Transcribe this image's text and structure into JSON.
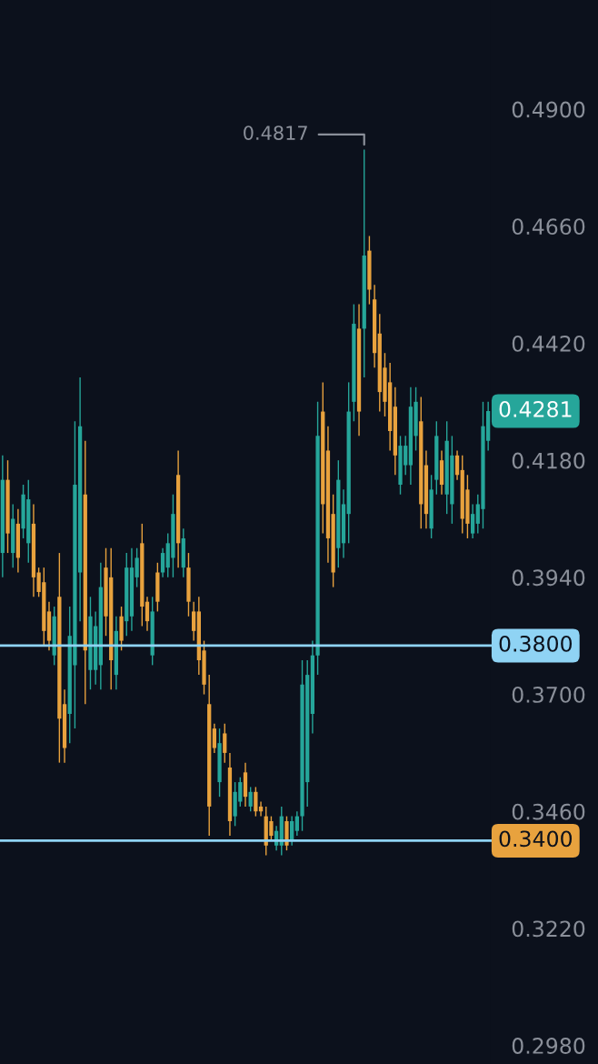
{
  "chart_data": {
    "type": "candlestick",
    "categories": [
      null,
      null,
      null,
      null,
      null,
      null,
      null,
      null,
      null,
      null,
      null,
      null,
      null,
      null,
      null,
      null,
      null,
      null,
      null,
      null,
      null,
      null,
      null,
      null,
      null,
      null,
      null,
      null,
      null,
      null,
      null,
      null,
      null,
      null,
      null,
      null,
      null,
      null,
      null,
      null,
      null,
      null,
      null,
      null,
      null,
      null,
      null,
      null,
      null,
      null,
      null,
      null,
      null,
      null,
      null,
      null,
      null,
      null,
      null,
      null,
      null,
      null,
      null,
      null,
      null,
      null,
      null,
      null,
      null,
      null,
      null,
      null,
      null,
      null,
      null,
      null,
      null,
      null,
      null,
      null,
      null,
      null,
      null,
      null,
      null,
      null,
      null,
      null,
      null,
      null,
      null,
      null,
      null,
      null,
      null
    ],
    "ohlc": [
      [
        0.399,
        0.419,
        0.394,
        0.414
      ],
      [
        0.414,
        0.418,
        0.399,
        0.403
      ],
      [
        0.399,
        0.409,
        0.396,
        0.406
      ],
      [
        0.405,
        0.408,
        0.395,
        0.398
      ],
      [
        0.404,
        0.413,
        0.402,
        0.411
      ],
      [
        0.401,
        0.414,
        0.397,
        0.41
      ],
      [
        0.405,
        0.409,
        0.39,
        0.394
      ],
      [
        0.395,
        0.396,
        0.39,
        0.391
      ],
      [
        0.393,
        0.396,
        0.38,
        0.383
      ],
      [
        0.387,
        0.389,
        0.379,
        0.381
      ],
      [
        0.378,
        0.388,
        0.376,
        0.386
      ],
      [
        0.39,
        0.399,
        0.356,
        0.365
      ],
      [
        0.368,
        0.371,
        0.356,
        0.359
      ],
      [
        0.366,
        0.388,
        0.36,
        0.382
      ],
      [
        0.376,
        0.426,
        0.363,
        0.413
      ],
      [
        0.395,
        0.435,
        0.385,
        0.425
      ],
      [
        0.411,
        0.422,
        0.368,
        0.379
      ],
      [
        0.375,
        0.39,
        0.371,
        0.386
      ],
      [
        0.375,
        0.387,
        0.372,
        0.384
      ],
      [
        0.376,
        0.397,
        0.371,
        0.392
      ],
      [
        0.396,
        0.4,
        0.382,
        0.386
      ],
      [
        0.394,
        0.4,
        0.371,
        0.377
      ],
      [
        0.374,
        0.386,
        0.371,
        0.383
      ],
      [
        0.386,
        0.388,
        0.379,
        0.381
      ],
      [
        0.385,
        0.399,
        0.382,
        0.396
      ],
      [
        0.386,
        0.4,
        0.383,
        0.396
      ],
      [
        0.394,
        0.4,
        0.392,
        0.398
      ],
      [
        0.401,
        0.405,
        0.384,
        0.388
      ],
      [
        0.389,
        0.39,
        0.383,
        0.385
      ],
      [
        0.378,
        0.39,
        0.376,
        0.387
      ],
      [
        0.395,
        0.397,
        0.387,
        0.389
      ],
      [
        0.395,
        0.4,
        0.394,
        0.399
      ],
      [
        0.396,
        0.403,
        0.394,
        0.401
      ],
      [
        0.398,
        0.411,
        0.394,
        0.407
      ],
      [
        0.415,
        0.42,
        0.396,
        0.401
      ],
      [
        0.396,
        0.404,
        0.394,
        0.402
      ],
      [
        0.396,
        0.399,
        0.386,
        0.389
      ],
      [
        0.387,
        0.389,
        0.381,
        0.383
      ],
      [
        0.387,
        0.39,
        0.374,
        0.377
      ],
      [
        0.379,
        0.381,
        0.37,
        0.372
      ],
      [
        0.368,
        0.374,
        0.341,
        0.347
      ],
      [
        0.363,
        0.364,
        0.358,
        0.359
      ],
      [
        0.352,
        0.363,
        0.349,
        0.36
      ],
      [
        0.362,
        0.364,
        0.356,
        0.358
      ],
      [
        0.355,
        0.358,
        0.341,
        0.344
      ],
      [
        0.345,
        0.352,
        0.343,
        0.35
      ],
      [
        0.348,
        0.353,
        0.347,
        0.352
      ],
      [
        0.354,
        0.356,
        0.347,
        0.349
      ],
      [
        0.347,
        0.351,
        0.346,
        0.35
      ],
      [
        0.35,
        0.351,
        0.345,
        0.346
      ],
      [
        0.347,
        0.348,
        0.345,
        0.346
      ],
      [
        0.345,
        0.347,
        0.337,
        0.339
      ],
      [
        0.344,
        0.345,
        0.34,
        0.341
      ],
      [
        0.339,
        0.343,
        0.338,
        0.342
      ],
      [
        0.339,
        0.347,
        0.337,
        0.345
      ],
      [
        0.344,
        0.345,
        0.338,
        0.339
      ],
      [
        0.34,
        0.345,
        0.339,
        0.344
      ],
      [
        0.342,
        0.346,
        0.341,
        0.345
      ],
      [
        0.345,
        0.377,
        0.342,
        0.372
      ],
      [
        0.352,
        0.377,
        0.347,
        0.374
      ],
      [
        0.366,
        0.381,
        0.362,
        0.378
      ],
      [
        0.378,
        0.43,
        0.374,
        0.423
      ],
      [
        0.428,
        0.434,
        0.403,
        0.409
      ],
      [
        0.42,
        0.425,
        0.397,
        0.402
      ],
      [
        0.407,
        0.411,
        0.392,
        0.395
      ],
      [
        0.4,
        0.418,
        0.396,
        0.414
      ],
      [
        0.401,
        0.412,
        0.398,
        0.409
      ],
      [
        0.407,
        0.434,
        0.401,
        0.428
      ],
      [
        0.43,
        0.45,
        0.426,
        0.446
      ],
      [
        0.445,
        0.45,
        0.423,
        0.428
      ],
      [
        0.445,
        0.4817,
        0.435,
        0.46
      ],
      [
        0.461,
        0.464,
        0.45,
        0.453
      ],
      [
        0.451,
        0.454,
        0.437,
        0.44
      ],
      [
        0.444,
        0.448,
        0.428,
        0.432
      ],
      [
        0.437,
        0.44,
        0.427,
        0.43
      ],
      [
        0.434,
        0.438,
        0.42,
        0.424
      ],
      [
        0.429,
        0.433,
        0.415,
        0.419
      ],
      [
        0.413,
        0.423,
        0.411,
        0.421
      ],
      [
        0.417,
        0.423,
        0.415,
        0.421
      ],
      [
        0.417,
        0.433,
        0.413,
        0.429
      ],
      [
        0.423,
        0.433,
        0.42,
        0.43
      ],
      [
        0.426,
        0.431,
        0.404,
        0.409
      ],
      [
        0.417,
        0.42,
        0.404,
        0.407
      ],
      [
        0.404,
        0.415,
        0.402,
        0.412
      ],
      [
        0.414,
        0.426,
        0.411,
        0.423
      ],
      [
        0.418,
        0.42,
        0.411,
        0.413
      ],
      [
        0.411,
        0.426,
        0.407,
        0.422
      ],
      [
        0.409,
        0.423,
        0.405,
        0.419
      ],
      [
        0.419,
        0.42,
        0.414,
        0.415
      ],
      [
        0.416,
        0.419,
        0.403,
        0.406
      ],
      [
        0.412,
        0.415,
        0.402,
        0.405
      ],
      [
        0.403,
        0.409,
        0.402,
        0.407
      ],
      [
        0.405,
        0.411,
        0.403,
        0.409
      ],
      [
        0.408,
        0.43,
        0.404,
        0.425
      ],
      [
        0.422,
        0.43,
        0.42,
        0.4281
      ]
    ],
    "colors": [
      "#26a69a",
      "#e8a23e",
      "#26a69a",
      "#e8a23e",
      "#26a69a",
      "#26a69a",
      "#e8a23e",
      "#e8a23e",
      "#e8a23e",
      "#e8a23e",
      "#26a69a",
      "#e8a23e",
      "#e8a23e",
      "#26a69a",
      "#26a69a",
      "#26a69a",
      "#e8a23e",
      "#26a69a",
      "#26a69a",
      "#26a69a",
      "#e8a23e",
      "#e8a23e",
      "#26a69a",
      "#e8a23e",
      "#26a69a",
      "#26a69a",
      "#26a69a",
      "#e8a23e",
      "#e8a23e",
      "#26a69a",
      "#e8a23e",
      "#26a69a",
      "#26a69a",
      "#26a69a",
      "#e8a23e",
      "#26a69a",
      "#e8a23e",
      "#e8a23e",
      "#e8a23e",
      "#e8a23e",
      "#e8a23e",
      "#e8a23e",
      "#26a69a",
      "#e8a23e",
      "#e8a23e",
      "#26a69a",
      "#26a69a",
      "#e8a23e",
      "#26a69a",
      "#e8a23e",
      "#e8a23e",
      "#e8a23e",
      "#e8a23e",
      "#26a69a",
      "#26a69a",
      "#e8a23e",
      "#26a69a",
      "#26a69a",
      "#26a69a",
      "#26a69a",
      "#26a69a",
      "#26a69a",
      "#e8a23e",
      "#e8a23e",
      "#e8a23e",
      "#26a69a",
      "#26a69a",
      "#26a69a",
      "#26a69a",
      "#e8a23e",
      "#26a69a",
      "#e8a23e",
      "#e8a23e",
      "#e8a23e",
      "#e8a23e",
      "#e8a23e",
      "#e8a23e",
      "#26a69a",
      "#26a69a",
      "#26a69a",
      "#26a69a",
      "#e8a23e",
      "#e8a23e",
      "#26a69a",
      "#26a69a",
      "#e8a23e",
      "#26a69a",
      "#26a69a",
      "#e8a23e",
      "#e8a23e",
      "#e8a23e",
      "#26a69a",
      "#26a69a",
      "#26a69a",
      "#26a69a"
    ],
    "ylim": [
      0.2942,
      0.5124
    ],
    "yticks": [
      {
        "value": 0.49,
        "label": "0.4900"
      },
      {
        "value": 0.466,
        "label": "0.4660"
      },
      {
        "value": 0.442,
        "label": "0.4420"
      },
      {
        "value": 0.418,
        "label": "0.4180"
      },
      {
        "value": 0.394,
        "label": "0.3940"
      },
      {
        "value": 0.37,
        "label": "0.3700"
      },
      {
        "value": 0.346,
        "label": "0.3460"
      },
      {
        "value": 0.322,
        "label": "0.3220"
      },
      {
        "value": 0.298,
        "label": "0.2980"
      }
    ],
    "ref_lines": [
      {
        "axis": "y",
        "value": 0.38,
        "label": "0.3800",
        "color": "#8fd3f4"
      },
      {
        "axis": "y",
        "value": 0.34,
        "label": "0.3400",
        "color": "#8fd3f4"
      }
    ],
    "annotations": [
      "0.4817",
      "0.4281"
    ],
    "grid": false
  }
}
